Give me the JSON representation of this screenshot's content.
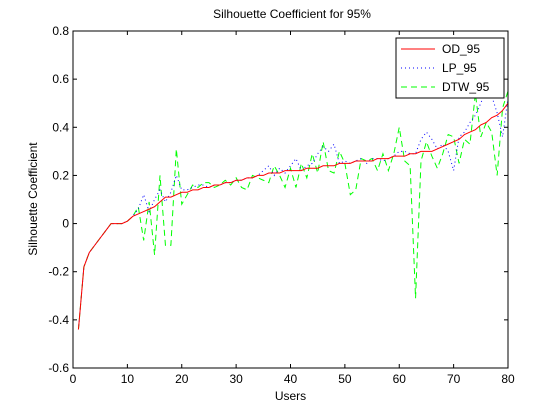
{
  "chart_data": {
    "type": "line",
    "title": "Silhouette Coefficient for 95%",
    "xlabel": "Users",
    "ylabel": "Silhouette Coefficient",
    "xlim": [
      0,
      80
    ],
    "ylim": [
      -0.6,
      0.8
    ],
    "xticks": [
      0,
      10,
      20,
      30,
      40,
      50,
      60,
      70,
      80
    ],
    "yticks": [
      -0.6,
      -0.4,
      -0.2,
      0,
      0.2,
      0.4,
      0.6,
      0.8
    ],
    "xtick_labels": [
      "0",
      "10",
      "20",
      "30",
      "40",
      "50",
      "60",
      "70",
      "80"
    ],
    "ytick_labels": [
      "-0.6",
      "-0.4",
      "-0.2",
      "0",
      "0.2",
      "0.4",
      "0.6",
      "0.8"
    ],
    "grid": false,
    "legend_position": "top-right",
    "x": [
      1,
      2,
      3,
      4,
      5,
      6,
      7,
      8,
      9,
      10,
      11,
      12,
      13,
      14,
      15,
      16,
      17,
      18,
      19,
      20,
      21,
      22,
      23,
      24,
      25,
      26,
      27,
      28,
      29,
      30,
      31,
      32,
      33,
      34,
      35,
      36,
      37,
      38,
      39,
      40,
      41,
      42,
      43,
      44,
      45,
      46,
      47,
      48,
      49,
      50,
      51,
      52,
      53,
      54,
      55,
      56,
      57,
      58,
      59,
      60,
      61,
      62,
      63,
      64,
      65,
      66,
      67,
      68,
      69,
      70,
      71,
      72,
      73,
      74,
      75,
      76,
      77,
      78,
      79,
      80
    ],
    "series": [
      {
        "name": "OD_95",
        "color": "#ff0000",
        "style": "solid",
        "values": [
          -0.44,
          -0.18,
          -0.12,
          -0.09,
          -0.06,
          -0.03,
          0.0,
          0.0,
          0.0,
          0.01,
          0.03,
          0.04,
          0.05,
          0.06,
          0.07,
          0.09,
          0.11,
          0.11,
          0.12,
          0.13,
          0.13,
          0.14,
          0.14,
          0.15,
          0.15,
          0.16,
          0.16,
          0.17,
          0.17,
          0.18,
          0.18,
          0.19,
          0.19,
          0.2,
          0.2,
          0.21,
          0.21,
          0.21,
          0.22,
          0.22,
          0.22,
          0.22,
          0.23,
          0.23,
          0.23,
          0.24,
          0.24,
          0.24,
          0.25,
          0.25,
          0.25,
          0.26,
          0.26,
          0.26,
          0.26,
          0.27,
          0.27,
          0.27,
          0.28,
          0.28,
          0.28,
          0.29,
          0.29,
          0.3,
          0.3,
          0.3,
          0.31,
          0.32,
          0.33,
          0.34,
          0.35,
          0.37,
          0.38,
          0.39,
          0.41,
          0.42,
          0.44,
          0.45,
          0.47,
          0.5
        ]
      },
      {
        "name": "LP_95",
        "color": "#0000ff",
        "style": "dotted",
        "values": [
          -0.44,
          -0.18,
          -0.12,
          -0.09,
          -0.06,
          -0.03,
          0.0,
          0.0,
          0.0,
          0.01,
          0.03,
          0.06,
          0.12,
          0.05,
          0.1,
          0.14,
          0.09,
          0.13,
          0.2,
          0.14,
          0.14,
          0.15,
          0.16,
          0.16,
          0.15,
          0.16,
          0.16,
          0.17,
          0.17,
          0.18,
          0.18,
          0.19,
          0.19,
          0.2,
          0.22,
          0.24,
          0.2,
          0.23,
          0.21,
          0.24,
          0.27,
          0.22,
          0.24,
          0.25,
          0.29,
          0.32,
          0.3,
          0.33,
          0.25,
          0.26,
          0.25,
          0.26,
          0.27,
          0.25,
          0.27,
          0.27,
          0.26,
          0.27,
          0.28,
          0.3,
          0.3,
          0.29,
          0.29,
          0.35,
          0.38,
          0.35,
          0.31,
          0.33,
          0.3,
          0.22,
          0.36,
          0.38,
          0.42,
          0.45,
          0.5,
          0.56,
          0.53,
          0.46,
          0.36,
          0.52
        ]
      },
      {
        "name": "DTW_95",
        "color": "#00ff00",
        "style": "dashed",
        "values": [
          -0.44,
          -0.18,
          -0.12,
          -0.09,
          -0.06,
          -0.03,
          0.0,
          0.0,
          0.0,
          0.01,
          0.03,
          0.07,
          -0.07,
          0.09,
          -0.13,
          0.2,
          -0.09,
          -0.09,
          0.31,
          0.08,
          0.12,
          0.16,
          0.15,
          0.17,
          0.17,
          0.15,
          0.16,
          0.18,
          0.16,
          0.19,
          0.15,
          0.14,
          0.2,
          0.19,
          0.18,
          0.17,
          0.24,
          0.2,
          0.15,
          0.23,
          0.15,
          0.25,
          0.19,
          0.29,
          0.21,
          0.34,
          0.22,
          0.21,
          0.3,
          0.25,
          0.12,
          0.14,
          0.27,
          0.26,
          0.27,
          0.22,
          0.29,
          0.22,
          0.29,
          0.4,
          0.26,
          0.24,
          -0.31,
          0.26,
          0.34,
          0.28,
          0.23,
          0.29,
          0.37,
          0.36,
          0.25,
          0.35,
          0.33,
          0.54,
          0.36,
          0.42,
          0.38,
          0.2,
          0.48,
          0.55
        ]
      }
    ]
  },
  "legend": {
    "entries": [
      "OD_95",
      "LP_95",
      "DTW_95"
    ]
  }
}
